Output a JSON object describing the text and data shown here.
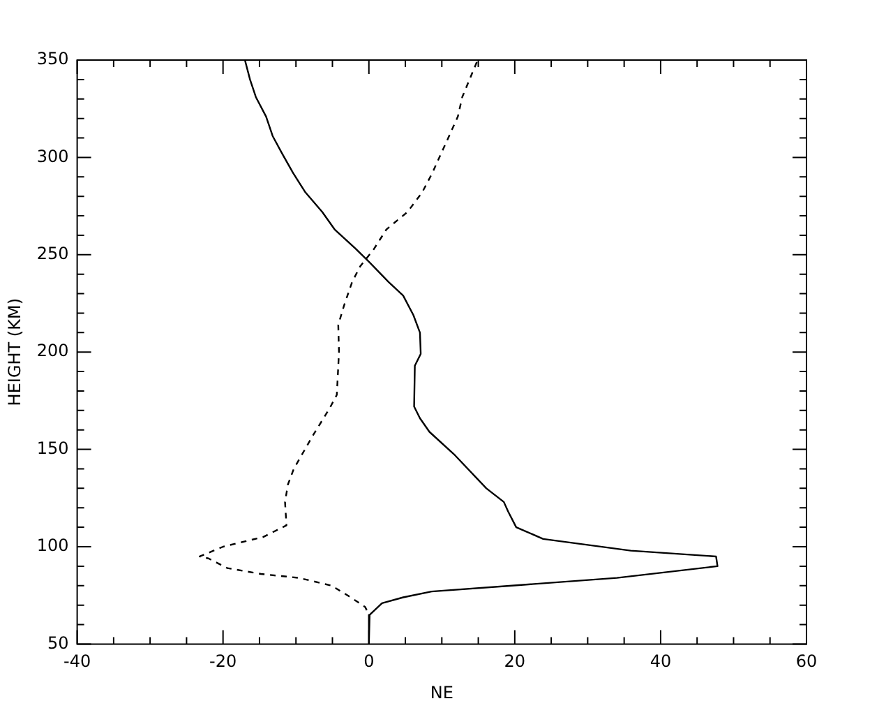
{
  "chart_data": {
    "type": "line",
    "xlabel": "NE",
    "ylabel": "HEIGHT (KM)",
    "xlim": [
      -40,
      60
    ],
    "ylim": [
      50,
      350
    ],
    "xticks": [
      -40,
      {
        "value": -35,
        "label": null
      },
      {
        "value": -30,
        "label": null
      },
      {
        "value": -25,
        "label": null
      },
      -20,
      {
        "value": -15,
        "label": null
      },
      {
        "value": -10,
        "label": null
      },
      {
        "value": -5,
        "label": null
      },
      0,
      {
        "value": 5,
        "label": null
      },
      {
        "value": 10,
        "label": null
      },
      {
        "value": 15,
        "label": null
      },
      20,
      {
        "value": 25,
        "label": null
      },
      {
        "value": 30,
        "label": null
      },
      {
        "value": 35,
        "label": null
      },
      40,
      {
        "value": 45,
        "label": null
      },
      {
        "value": 50,
        "label": null
      },
      {
        "value": 55,
        "label": null
      },
      60
    ],
    "yticks": [
      50,
      {
        "value": 60,
        "label": null
      },
      {
        "value": 70,
        "label": null
      },
      {
        "value": 80,
        "label": null
      },
      {
        "value": 90,
        "label": null
      },
      100,
      {
        "value": 110,
        "label": null
      },
      {
        "value": 120,
        "label": null
      },
      {
        "value": 130,
        "label": null
      },
      {
        "value": 140,
        "label": null
      },
      150,
      {
        "value": 160,
        "label": null
      },
      {
        "value": 170,
        "label": null
      },
      {
        "value": 180,
        "label": null
      },
      {
        "value": 190,
        "label": null
      },
      200,
      {
        "value": 210,
        "label": null
      },
      {
        "value": 220,
        "label": null
      },
      {
        "value": 230,
        "label": null
      },
      {
        "value": 240,
        "label": null
      },
      250,
      {
        "value": 260,
        "label": null
      },
      {
        "value": 270,
        "label": null
      },
      {
        "value": 280,
        "label": null
      },
      {
        "value": 290,
        "label": null
      },
      300,
      {
        "value": 310,
        "label": null
      },
      {
        "value": 320,
        "label": null
      },
      {
        "value": 330,
        "label": null
      },
      {
        "value": 340,
        "label": null
      },
      350
    ],
    "grid": false,
    "legend": false,
    "marker": "none",
    "series": [
      {
        "color": "#000000",
        "line_style": "solid",
        "x": [
          -17.0,
          -16.3,
          -15.5,
          -14.1,
          -13.2,
          -11.9,
          -10.4,
          -8.7,
          -6.4,
          -4.7,
          -1.8,
          0.1,
          2.7,
          4.7,
          6.1,
          7.0,
          7.1,
          7.1,
          6.3,
          6.2,
          7.0,
          8.3,
          11.8,
          16.1,
          18.5,
          19.1,
          20.2,
          23.9,
          35.9,
          47.6,
          47.8,
          34.0,
          19.6,
          8.6,
          4.7,
          1.8,
          0.1,
          0
        ],
        "values": [
          350,
          340,
          331,
          321,
          311,
          302,
          292,
          282,
          272,
          263,
          253,
          246,
          236,
          229,
          219,
          210,
          200,
          199,
          193,
          172,
          166,
          159,
          147,
          130,
          123,
          118,
          110,
          104,
          98,
          95,
          90,
          84,
          80,
          77,
          74,
          71,
          65,
          50
        ]
      },
      {
        "color": "#000000",
        "line_style": "dashed",
        "x": [
          14.8,
          13.8,
          12.8,
          12.2,
          11.0,
          9.9,
          8.7,
          7.3,
          5.3,
          2.4,
          0.7,
          -1.2,
          -2.3,
          -3.4,
          -4.2,
          -4.1,
          -4.4,
          -5.4,
          -7.7,
          -10.3,
          -11.1,
          -11.5,
          -11.3,
          -14.5,
          -20.0,
          -23.2,
          -22.0,
          -19.4,
          -14.8,
          -9.6,
          -5.1,
          -2.5,
          -0.5,
          0
        ],
        "values": [
          349,
          340,
          331,
          321,
          311,
          302,
          292,
          282,
          272,
          263,
          253,
          244,
          236,
          224,
          214,
          200,
          178,
          171,
          157,
          140,
          132,
          123,
          111,
          105,
          100,
          95,
          94,
          89,
          86,
          84,
          80,
          74,
          69,
          65
        ]
      }
    ]
  }
}
